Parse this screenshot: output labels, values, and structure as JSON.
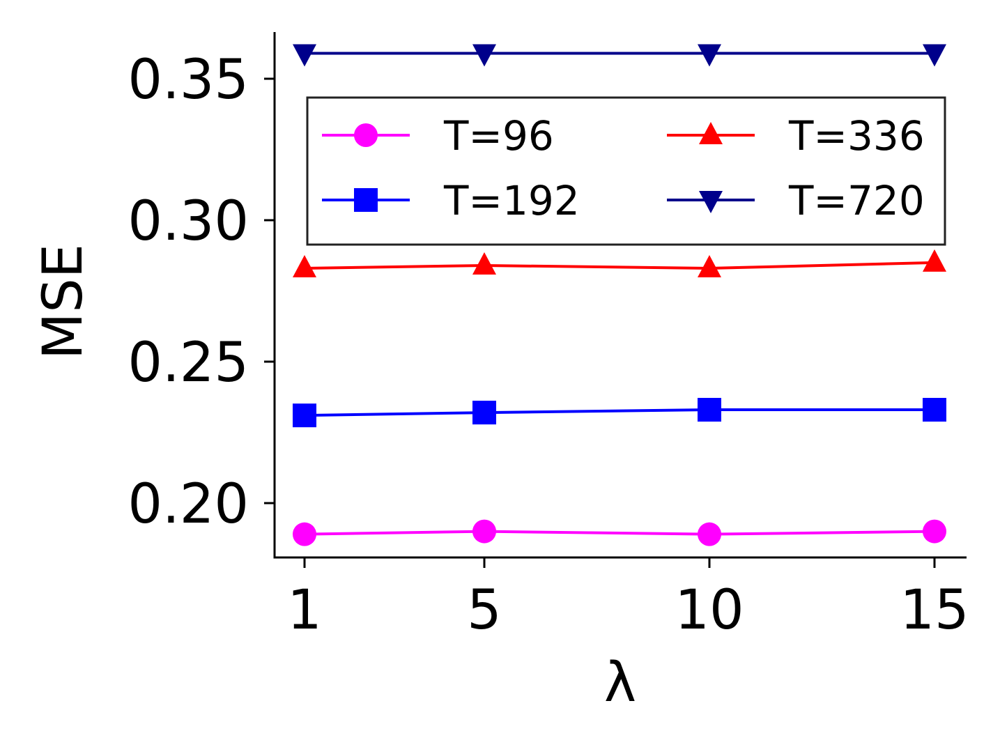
{
  "chart_data": {
    "type": "line",
    "x": [
      1,
      5,
      10,
      15
    ],
    "xlabel": "λ",
    "ylabel": "MSE",
    "x_ticks": [
      "1",
      "5",
      "10",
      "15"
    ],
    "y_ticks": [
      "0.20",
      "0.25",
      "0.30",
      "0.35"
    ],
    "ylim": [
      0.18,
      0.366
    ],
    "grid": false,
    "legend_position": "upper center",
    "legend_columns": 2,
    "series": [
      {
        "name": "T=96",
        "values": [
          0.189,
          0.19,
          0.189,
          0.19
        ],
        "color": "#ff00ff",
        "marker": "circle"
      },
      {
        "name": "T=192",
        "values": [
          0.231,
          0.232,
          0.233,
          0.233
        ],
        "color": "#0000ff",
        "marker": "square"
      },
      {
        "name": "T=336",
        "values": [
          0.283,
          0.284,
          0.283,
          0.285
        ],
        "color": "#ff0000",
        "marker": "triangle-up"
      },
      {
        "name": "T=720",
        "values": [
          0.359,
          0.359,
          0.359,
          0.359
        ],
        "color": "#00008b",
        "marker": "triangle-down"
      }
    ]
  }
}
